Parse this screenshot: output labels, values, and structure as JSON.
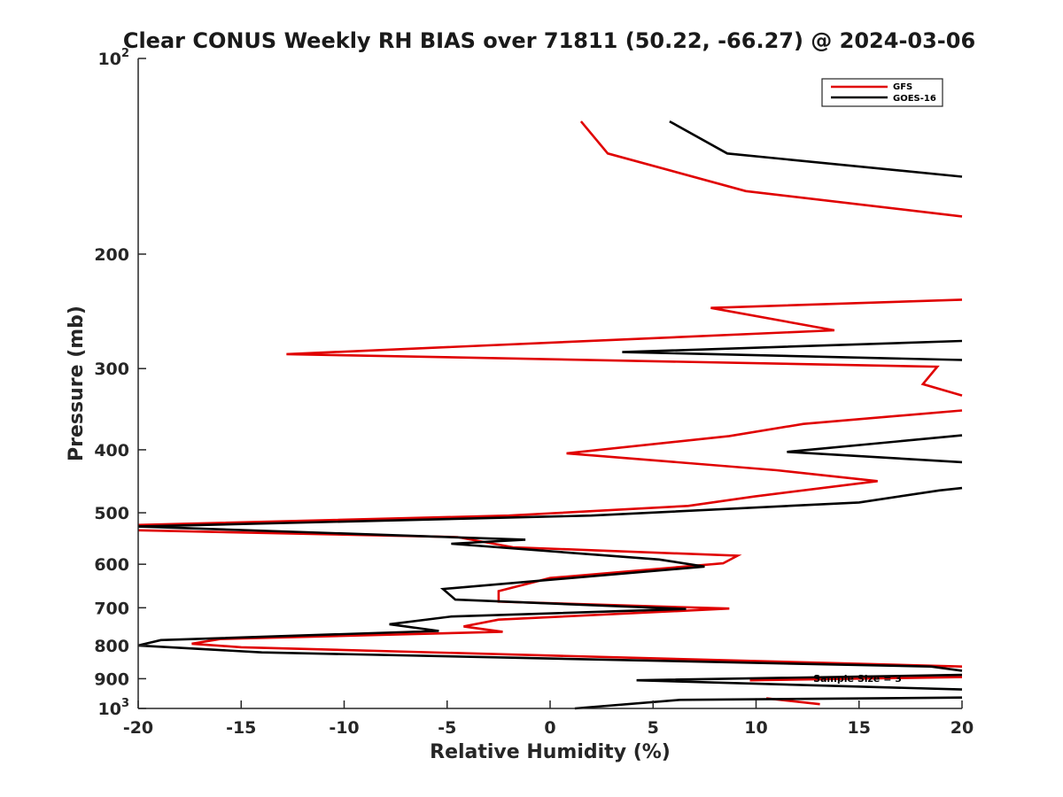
{
  "chart_data": {
    "type": "line",
    "title": "Clear CONUS Weekly RH BIAS over 71811 (50.22, -66.27) @ 2024-03-06",
    "xlabel": "Relative Humidity (%)",
    "ylabel": "Pressure (mb)",
    "xlim": [
      -20,
      20
    ],
    "ylim": [
      100,
      1000
    ],
    "y_scale": "log",
    "y_reversed": true,
    "x_ticks": [
      -20,
      -15,
      -10,
      -5,
      0,
      5,
      10,
      15,
      20
    ],
    "x_tick_labels": [
      "-20",
      "-15",
      "-10",
      "-5",
      "0",
      "5",
      "10",
      "15",
      "20"
    ],
    "y_ticks": [
      200,
      300,
      400,
      500,
      600,
      700,
      800,
      900
    ],
    "y_tick_labels": [
      "200",
      "300",
      "400",
      "500",
      "600",
      "700",
      "800",
      "900"
    ],
    "y_end_ticks": [
      {
        "value": 100,
        "base": "10",
        "exp": "2"
      },
      {
        "value": 1000,
        "base": "10",
        "exp": "3"
      }
    ],
    "grid": false,
    "legend_position": "top-right",
    "annotation": "Sample Size = 3",
    "series": [
      {
        "name": "GFS",
        "color": "#e00000",
        "segments": [
          [
            [
              1.5,
              125
            ],
            [
              2.8,
              140
            ],
            [
              9.5,
              160
            ],
            [
              20,
              175
            ]
          ],
          [
            [
              20,
              235
            ],
            [
              7.8,
              242
            ],
            [
              13.8,
              262
            ],
            [
              -12.8,
              285
            ],
            [
              18.8,
              298
            ],
            [
              18.1,
              317
            ],
            [
              20,
              330
            ]
          ],
          [
            [
              20,
              348
            ],
            [
              12.3,
              365
            ],
            [
              8.7,
              381
            ],
            [
              0.8,
              405
            ],
            [
              11.0,
              430
            ],
            [
              15.9,
              447
            ],
            [
              9.9,
              472
            ],
            [
              6.7,
              488
            ],
            [
              -2.0,
              505
            ],
            [
              -20,
              522
            ]
          ],
          [
            [
              -20,
              532
            ],
            [
              -4.5,
              545
            ],
            [
              -1.8,
              565
            ],
            [
              9.1,
              582
            ],
            [
              8.4,
              598
            ],
            [
              0,
              630
            ],
            [
              -2.5,
              660
            ],
            [
              -2.5,
              685
            ],
            [
              8.7,
              702
            ],
            [
              -2.5,
              730
            ],
            [
              -4.2,
              748
            ],
            [
              -2.3,
              762
            ],
            [
              -16.0,
              782
            ],
            [
              -17.4,
              795
            ],
            [
              -15,
              805
            ],
            [
              20,
              862
            ]
          ],
          [
            [
              9.7,
              905
            ],
            [
              20,
              895
            ]
          ],
          [
            [
              10.5,
              965
            ],
            [
              13.1,
              985
            ]
          ]
        ]
      },
      {
        "name": "GOES-16",
        "color": "#000000",
        "segments": [
          [
            [
              5.8,
              125
            ],
            [
              8.6,
              140
            ],
            [
              20,
              152
            ]
          ],
          [
            [
              20,
              272
            ],
            [
              3.5,
              283
            ],
            [
              20,
              291
            ]
          ],
          [
            [
              20,
              380
            ],
            [
              11.5,
              403
            ],
            [
              20,
              418
            ]
          ],
          [
            [
              20,
              458
            ],
            [
              18.9,
              462
            ],
            [
              15.0,
              482
            ],
            [
              2.0,
              505
            ],
            [
              -20,
              525
            ]
          ],
          [
            [
              -20,
              525
            ],
            [
              -1.2,
              550
            ],
            [
              -4.8,
              558
            ],
            [
              5.3,
              590
            ],
            [
              7.5,
              605
            ],
            [
              -5.2,
              655
            ],
            [
              -4.6,
              680
            ],
            [
              6.6,
              703
            ],
            [
              -4.8,
              722
            ],
            [
              -7.8,
              742
            ],
            [
              -5.4,
              760
            ],
            [
              -18.9,
              785
            ],
            [
              -20,
              800
            ]
          ],
          [
            [
              -20,
              800
            ],
            [
              -14.0,
              820
            ],
            [
              18.5,
              862
            ],
            [
              20,
              875
            ]
          ],
          [
            [
              20,
              888
            ],
            [
              4.2,
              905
            ],
            [
              20,
              935
            ]
          ],
          [
            [
              20,
              962
            ],
            [
              6.3,
              970
            ],
            [
              1.2,
              1000
            ]
          ]
        ]
      }
    ]
  }
}
